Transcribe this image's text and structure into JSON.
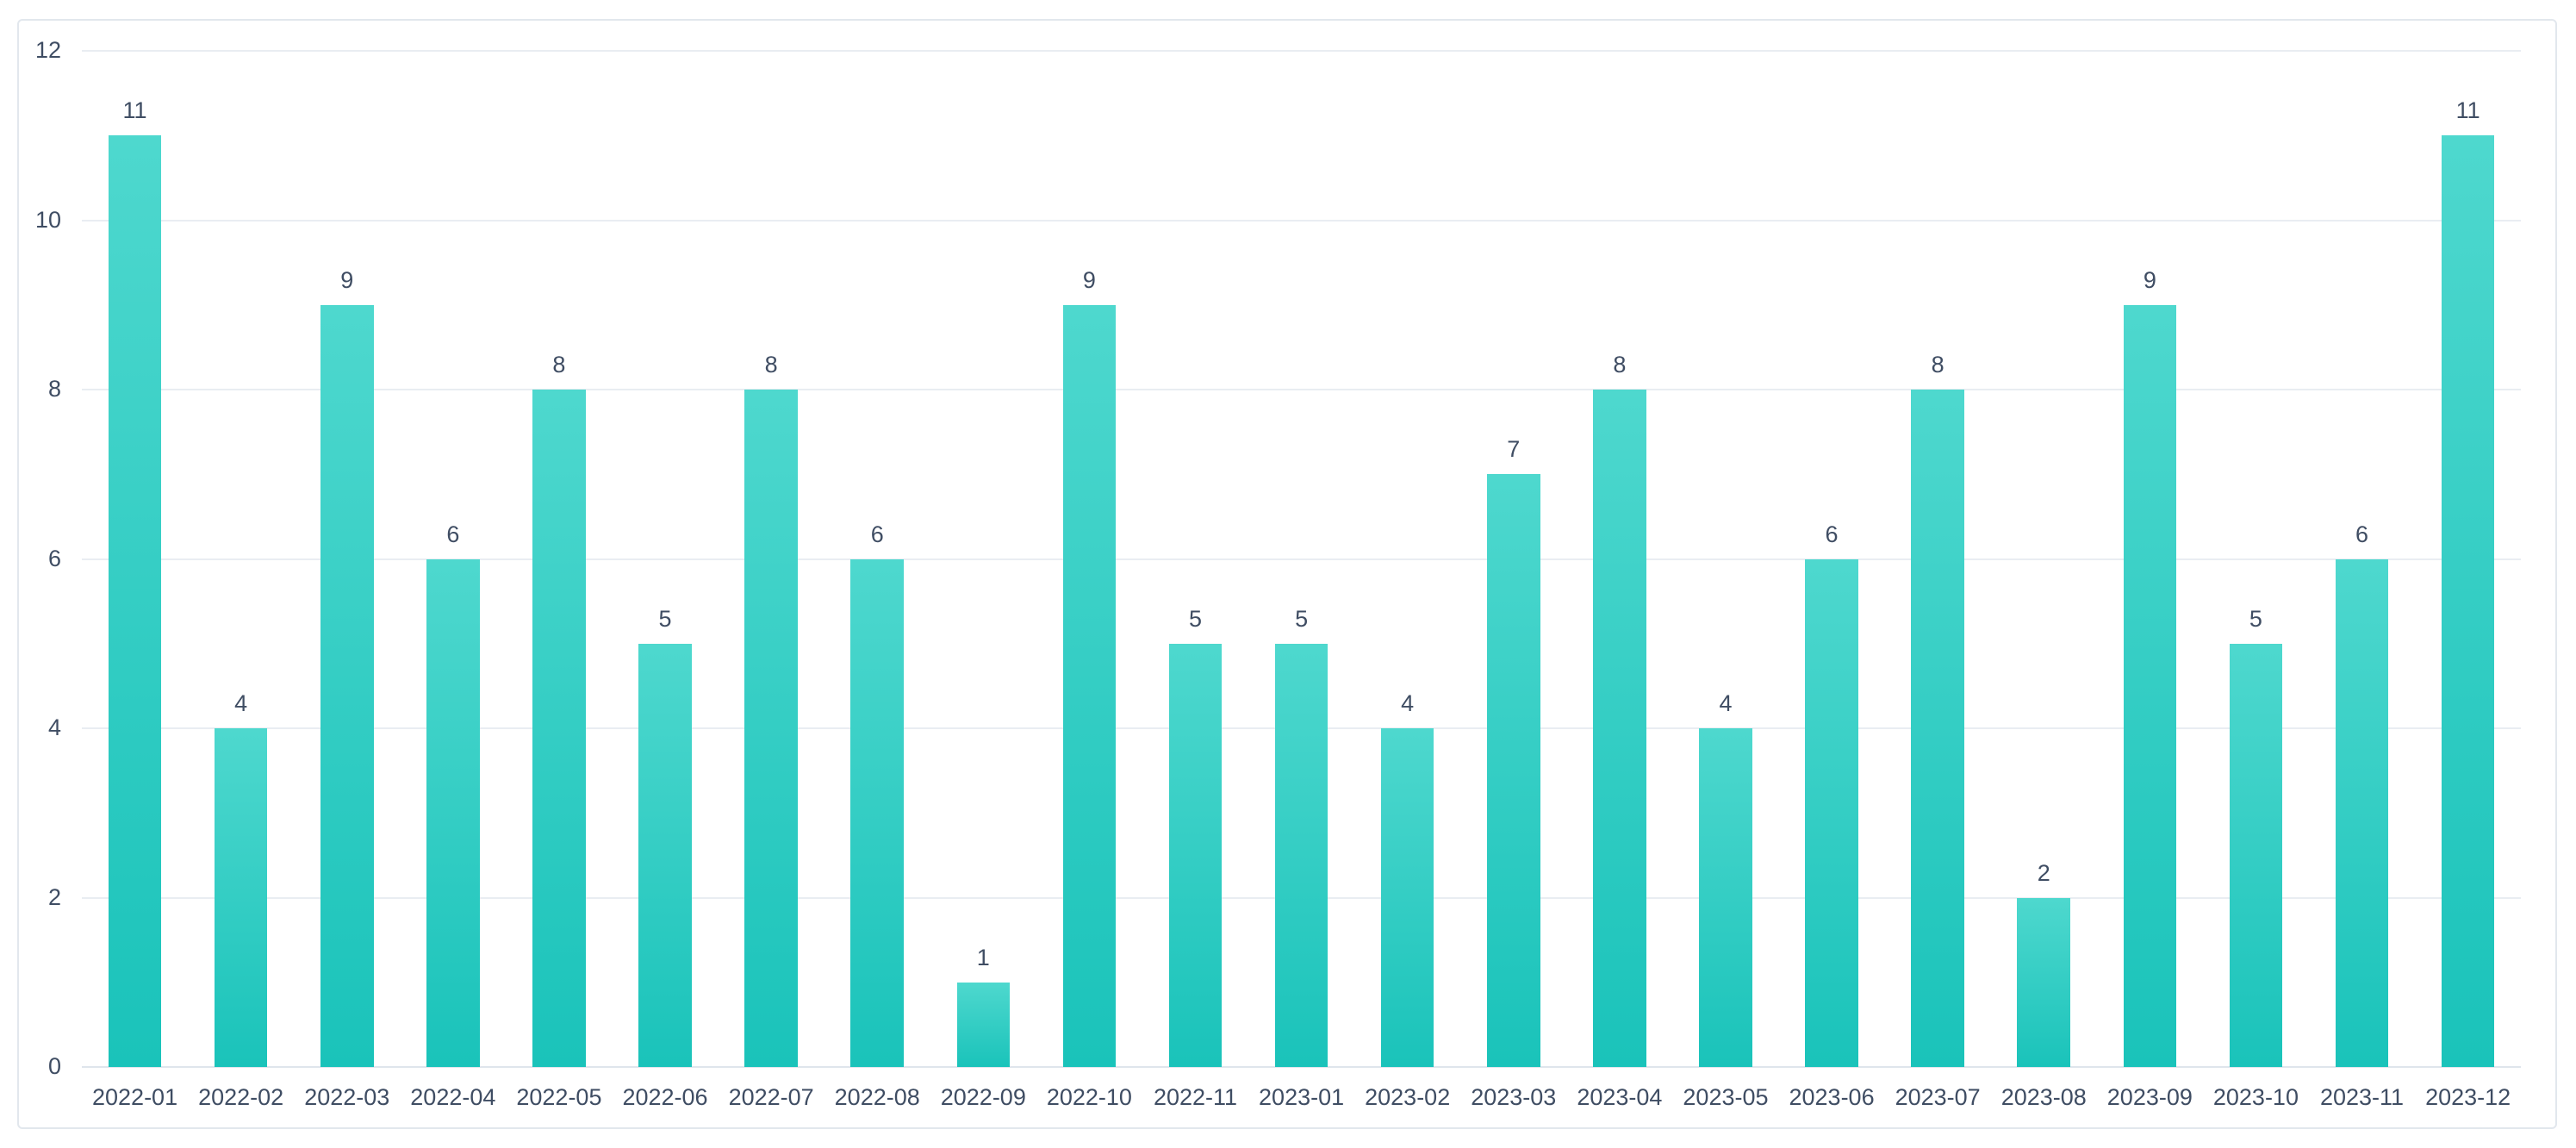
{
  "card": {
    "background": "#ffffff",
    "border_color": "#e2e7ed"
  },
  "chart_data": {
    "type": "bar",
    "title": "",
    "xlabel": "",
    "ylabel": "",
    "categories": [
      "2022-01",
      "2022-02",
      "2022-03",
      "2022-04",
      "2022-05",
      "2022-06",
      "2022-07",
      "2022-08",
      "2022-09",
      "2022-10",
      "2022-11",
      "2023-01",
      "2023-02",
      "2023-03",
      "2023-04",
      "2023-05",
      "2023-06",
      "2023-07",
      "2023-08",
      "2023-09",
      "2023-10",
      "2023-11",
      "2023-12"
    ],
    "values": [
      11,
      4,
      9,
      6,
      8,
      5,
      8,
      6,
      1,
      9,
      5,
      5,
      4,
      7,
      8,
      4,
      6,
      8,
      2,
      9,
      5,
      6,
      11
    ],
    "value_labels_shown": true,
    "yticks": [
      0,
      2,
      4,
      6,
      8,
      10,
      12
    ],
    "ylim": [
      0,
      12
    ],
    "grid": true,
    "legend": null,
    "colors": {
      "bar_gradient_top": "#4ed8ce",
      "bar_gradient_bottom": "#1ac3ba",
      "gridline": "#e9edf2",
      "axis_baseline": "#dfe5ec",
      "tick_text": "#3f4d63"
    }
  }
}
